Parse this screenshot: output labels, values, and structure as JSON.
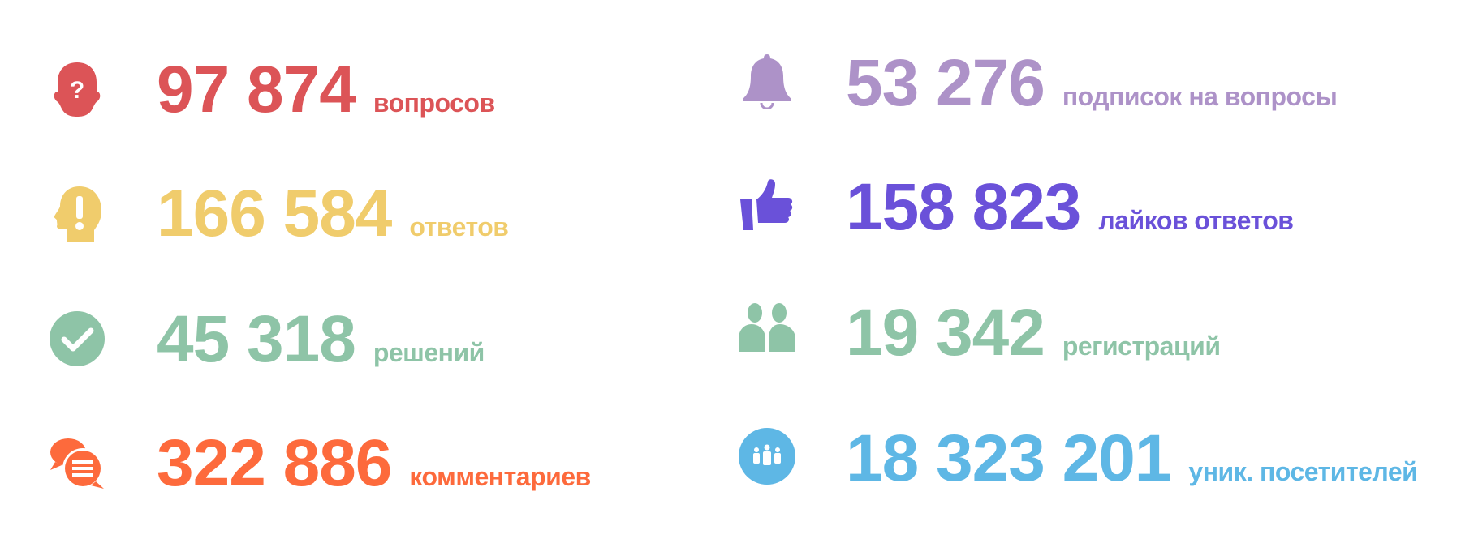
{
  "stats": [
    {
      "value": "97 874",
      "label": "вопросов",
      "color": "#dc5457",
      "icon": "head-question-icon"
    },
    {
      "value": "166 584",
      "label": "ответов",
      "color": "#f0cc6c",
      "icon": "head-exclamation-icon"
    },
    {
      "value": "45 318",
      "label": "решений",
      "color": "#8ec4a7",
      "icon": "check-circle-icon"
    },
    {
      "value": "322 886",
      "label": "комментариев",
      "color": "#fd6a3c",
      "icon": "comments-icon"
    },
    {
      "value": "53 276",
      "label": "подписок на вопросы",
      "color": "#ad92c8",
      "icon": "bell-icon"
    },
    {
      "value": "158 823",
      "label": "лайков ответов",
      "color": "#6a51d9",
      "icon": "thumbs-up-icon"
    },
    {
      "value": "19 342",
      "label": "регистраций",
      "color": "#8ec4a7",
      "icon": "users-icon"
    },
    {
      "value": "18 323 201",
      "label": "уник. посетителей",
      "color": "#5eb7e5",
      "icon": "visitors-circle-icon"
    }
  ]
}
